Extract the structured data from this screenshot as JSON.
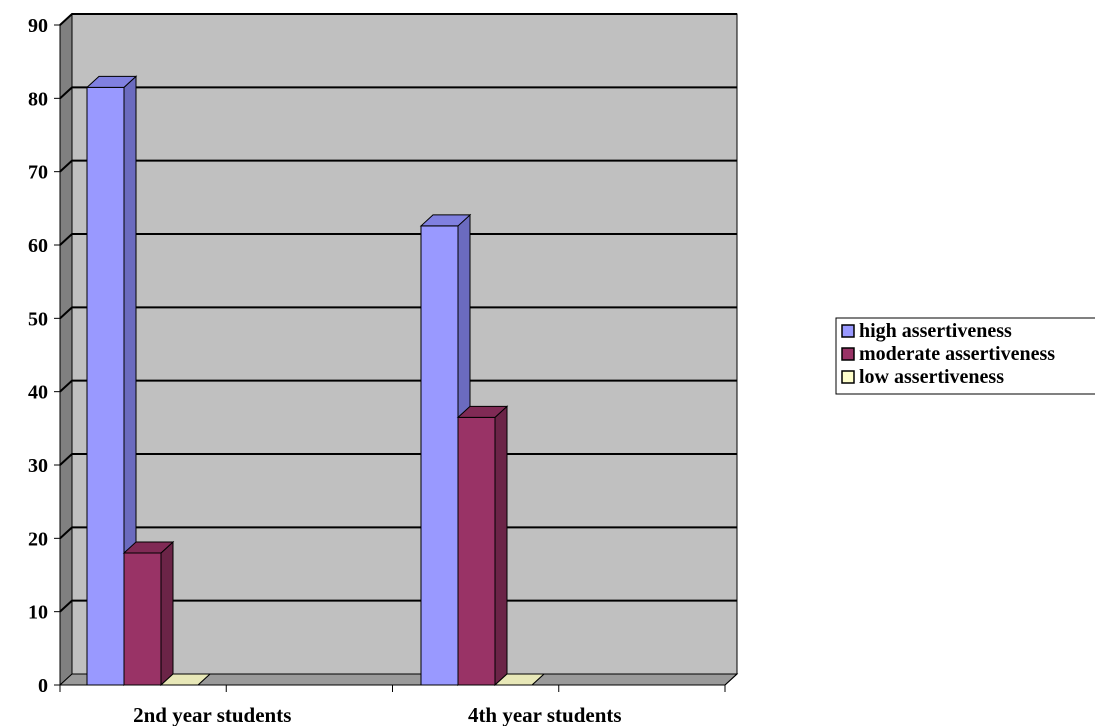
{
  "chart_data": {
    "type": "bar",
    "three_d": true,
    "categories": [
      "2nd year students",
      "4th year students"
    ],
    "series": [
      {
        "name": "high assertiveness",
        "values": [
          81.5,
          62.6
        ],
        "color": "#9999ff",
        "side_color": "#6b6bbf",
        "top_color": "#8080e0"
      },
      {
        "name": "moderate assertiveness",
        "values": [
          18.0,
          36.5
        ],
        "color": "#993366",
        "side_color": "#6b2447",
        "top_color": "#802a55"
      },
      {
        "name": "low assertiveness",
        "values": [
          0.0,
          0.0
        ],
        "color": "#ffffcc",
        "side_color": "#c4c49a",
        "top_color": "#e8e8b8"
      }
    ],
    "title": "",
    "xlabel": "",
    "ylabel": "",
    "ylim": [
      0,
      90
    ],
    "yticks": [
      "0",
      "10",
      "20",
      "30",
      "40",
      "50",
      "60",
      "70",
      "80",
      "90"
    ],
    "grid": true,
    "legend_position": "right",
    "colors": {
      "plot_back": "#c0c0c0",
      "plot_side_wall": "#808080",
      "plot_floor": "#9a9a9a",
      "grid": "#000000"
    }
  }
}
